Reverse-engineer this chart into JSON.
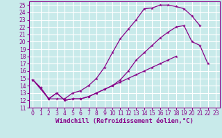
{
  "bg_color": "#c8eaea",
  "line_color": "#880088",
  "grid_color": "#ffffff",
  "xlabel": "Windchill (Refroidissement éolien,°C)",
  "xlim": [
    -0.5,
    23.5
  ],
  "ylim": [
    11,
    25.5
  ],
  "xticks": [
    0,
    1,
    2,
    3,
    4,
    5,
    6,
    7,
    8,
    9,
    10,
    11,
    12,
    13,
    14,
    15,
    16,
    17,
    18,
    19,
    20,
    21,
    22,
    23
  ],
  "yticks": [
    11,
    12,
    13,
    14,
    15,
    16,
    17,
    18,
    19,
    20,
    21,
    22,
    23,
    24,
    25
  ],
  "line1_x": [
    0,
    1,
    2,
    3,
    4,
    5,
    6,
    7,
    8,
    9,
    10,
    11,
    12,
    13,
    14,
    15,
    16,
    17,
    18,
    19,
    20,
    21
  ],
  "line1_y": [
    14.8,
    13.7,
    12.2,
    12.2,
    12.2,
    13.0,
    13.3,
    14.0,
    15.0,
    16.5,
    18.5,
    20.4,
    21.7,
    23.0,
    24.5,
    24.6,
    25.0,
    25.0,
    24.8,
    24.5,
    23.5,
    22.2
  ],
  "line2_x": [
    0,
    1,
    2,
    3,
    4,
    5,
    6,
    7,
    8,
    9,
    10,
    11,
    12,
    13,
    14,
    15,
    16,
    17,
    18
  ],
  "line2_y": [
    14.8,
    13.7,
    12.2,
    13.0,
    12.0,
    12.2,
    12.2,
    12.5,
    13.0,
    13.5,
    14.0,
    14.5,
    15.0,
    15.5,
    16.0,
    16.5,
    17.0,
    17.5,
    18.0
  ],
  "line3_x": [
    0,
    2,
    3,
    4,
    5,
    6,
    7,
    8,
    9,
    10,
    11,
    12,
    13,
    14,
    15,
    16,
    17,
    18,
    19,
    20,
    21,
    22
  ],
  "line3_y": [
    14.8,
    12.2,
    13.0,
    12.0,
    12.2,
    12.2,
    12.5,
    13.0,
    13.5,
    14.0,
    14.8,
    16.0,
    17.5,
    18.5,
    19.5,
    20.5,
    21.3,
    22.0,
    22.2,
    20.0,
    19.5,
    17.0
  ],
  "tick_fontsize": 5.5,
  "label_fontsize": 6.5
}
